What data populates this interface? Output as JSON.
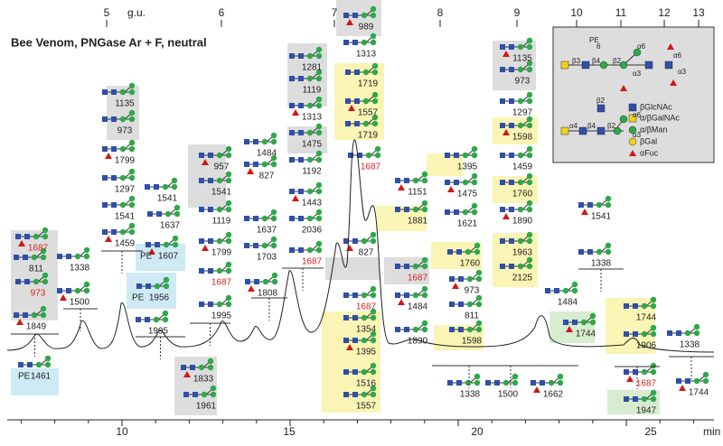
{
  "title": "Bee Venom, PNGase Ar + F, neutral",
  "top_axis": {
    "ticks": [
      "5",
      "6",
      "7",
      "8",
      "9",
      "10",
      "11",
      "12",
      "13"
    ],
    "label": "g.u."
  },
  "bottom_axis": {
    "ticks": [
      "10",
      "15",
      "20",
      "25"
    ],
    "label": "min"
  },
  "pe_labels": [
    "PE",
    "PE",
    "PE"
  ],
  "glycans": [
    "1687",
    "811",
    "973",
    "1849",
    "1461",
    "1338",
    "1500",
    "1135",
    "973",
    "1799",
    "1297",
    "1541",
    "1459",
    "1541",
    "1637",
    "1607",
    "1956",
    "1995",
    "957",
    "1541",
    "1119",
    "1799",
    "1687",
    "1995",
    "1833",
    "1961",
    "1484",
    "827",
    "1637",
    "1703",
    "1808",
    "1281",
    "1119",
    "1313",
    "1475",
    "1192",
    "1443",
    "2036",
    "1687",
    "989",
    "1313",
    "1719",
    "1557",
    "1719",
    "1687",
    "827",
    "1687",
    "1354",
    "1395",
    "1516",
    "1557",
    "1151",
    "1881",
    "1687",
    "1484",
    "1890",
    "1395",
    "1475",
    "1621",
    "1760",
    "973",
    "811",
    "1598",
    "1135",
    "973",
    "1297",
    "1598",
    "1459",
    "1760",
    "1890",
    "1963",
    "2125",
    "1541",
    "1338",
    "1484",
    "1744",
    "1744",
    "1906",
    "1687",
    "1947",
    "1338",
    "1744",
    "1338",
    "1500",
    "1662"
  ],
  "legend": {
    "items": [
      "βGlcNAc",
      "α/βGalNAc",
      "α/βMan",
      "βGal",
      "αFuc"
    ],
    "structure_labels": [
      "PE",
      "6",
      "β3",
      "β4",
      "β2",
      "α6",
      "α3",
      "α6",
      "α3",
      "β2",
      "α6",
      "α4",
      "β4",
      "β2",
      "α3"
    ]
  }
}
